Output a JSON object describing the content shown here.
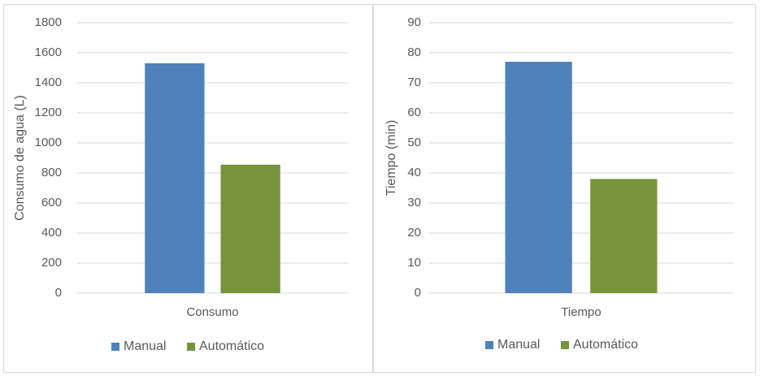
{
  "chart_data": [
    {
      "type": "bar",
      "y_label": "Consumo de agua (L)",
      "categories": [
        "Consumo"
      ],
      "series": [
        {
          "name": "Manual",
          "color": "#4f81bd",
          "values": [
            1530
          ]
        },
        {
          "name": "Automático",
          "color": "#77933c",
          "values": [
            855
          ]
        }
      ],
      "ylim": [
        0,
        1800
      ],
      "yticks": [
        0,
        200,
        400,
        600,
        800,
        1000,
        1200,
        1400,
        1600,
        1800
      ],
      "grid": true,
      "legend": "bottom"
    },
    {
      "type": "bar",
      "y_label": "Tiempo (min)",
      "categories": [
        "Tiempo"
      ],
      "series": [
        {
          "name": "Manual",
          "color": "#4f81bd",
          "values": [
            77
          ]
        },
        {
          "name": "Automático",
          "color": "#77933c",
          "values": [
            38
          ]
        }
      ],
      "ylim": [
        0,
        90
      ],
      "yticks": [
        0,
        10,
        20,
        30,
        40,
        50,
        60,
        70,
        80,
        90
      ],
      "grid": true,
      "legend": "bottom"
    }
  ]
}
